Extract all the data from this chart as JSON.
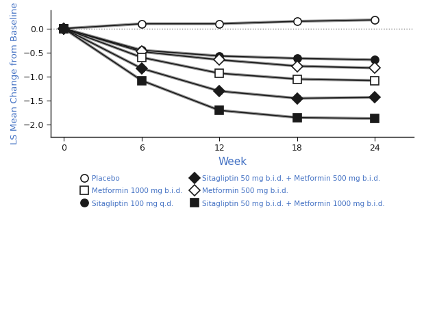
{
  "weeks": [
    0,
    6,
    12,
    18,
    24
  ],
  "series": [
    {
      "label": "Placebo",
      "values": [
        0.0,
        0.1,
        0.1,
        0.15,
        0.18
      ],
      "marker": "o",
      "filled": false
    },
    {
      "label": "Sitagliptin 100 mg q.d.",
      "values": [
        0.0,
        -0.45,
        -0.57,
        -0.62,
        -0.65
      ],
      "marker": "o",
      "filled": true
    },
    {
      "label": "Metformin 500 mg b.i.d.",
      "values": [
        0.0,
        -0.48,
        -0.65,
        -0.78,
        -0.82
      ],
      "marker": "D",
      "filled": false
    },
    {
      "label": "Metformin 1000 mg b.i.d.",
      "values": [
        0.0,
        -0.6,
        -0.93,
        -1.05,
        -1.08
      ],
      "marker": "s",
      "filled": false
    },
    {
      "label": "Sitagliptin 50 mg b.i.d. + Metformin 500 mg b.i.d.",
      "values": [
        0.0,
        -0.83,
        -1.3,
        -1.45,
        -1.43
      ],
      "marker": "D",
      "filled": true
    },
    {
      "label": "Sitagliptin 50 mg b.i.d. + Metformin 1000 mg b.i.d.",
      "values": [
        0.0,
        -1.08,
        -1.7,
        -1.85,
        -1.87
      ],
      "marker": "s",
      "filled": true
    }
  ],
  "series_yerr": [
    [
      0.0,
      0.05,
      0.05,
      0.05,
      0.05
    ],
    [
      0.0,
      0.05,
      0.05,
      0.05,
      0.05
    ],
    [
      0.0,
      0.05,
      0.05,
      0.05,
      0.05
    ],
    [
      0.0,
      0.05,
      0.06,
      0.06,
      0.06
    ],
    [
      0.0,
      0.05,
      0.06,
      0.06,
      0.06
    ],
    [
      0.0,
      0.05,
      0.06,
      0.06,
      0.06
    ]
  ],
  "xlabel": "Week",
  "ylabel": "LS Mean Change from Baseline",
  "xlim": [
    -1,
    27
  ],
  "ylim": [
    -2.25,
    0.38
  ],
  "yticks": [
    -2.0,
    -1.5,
    -1.0,
    -0.5,
    0.0
  ],
  "xticks": [
    0,
    6,
    12,
    18,
    24
  ],
  "xlabel_color": "#4472C4",
  "ylabel_color": "#4472C4",
  "legend_text_color": "#4472C4",
  "black_color": "#1a1a1a",
  "gray_line_color": "#999999",
  "background_color": "#ffffff",
  "legend_order": [
    0,
    3,
    1,
    4,
    2,
    5
  ]
}
